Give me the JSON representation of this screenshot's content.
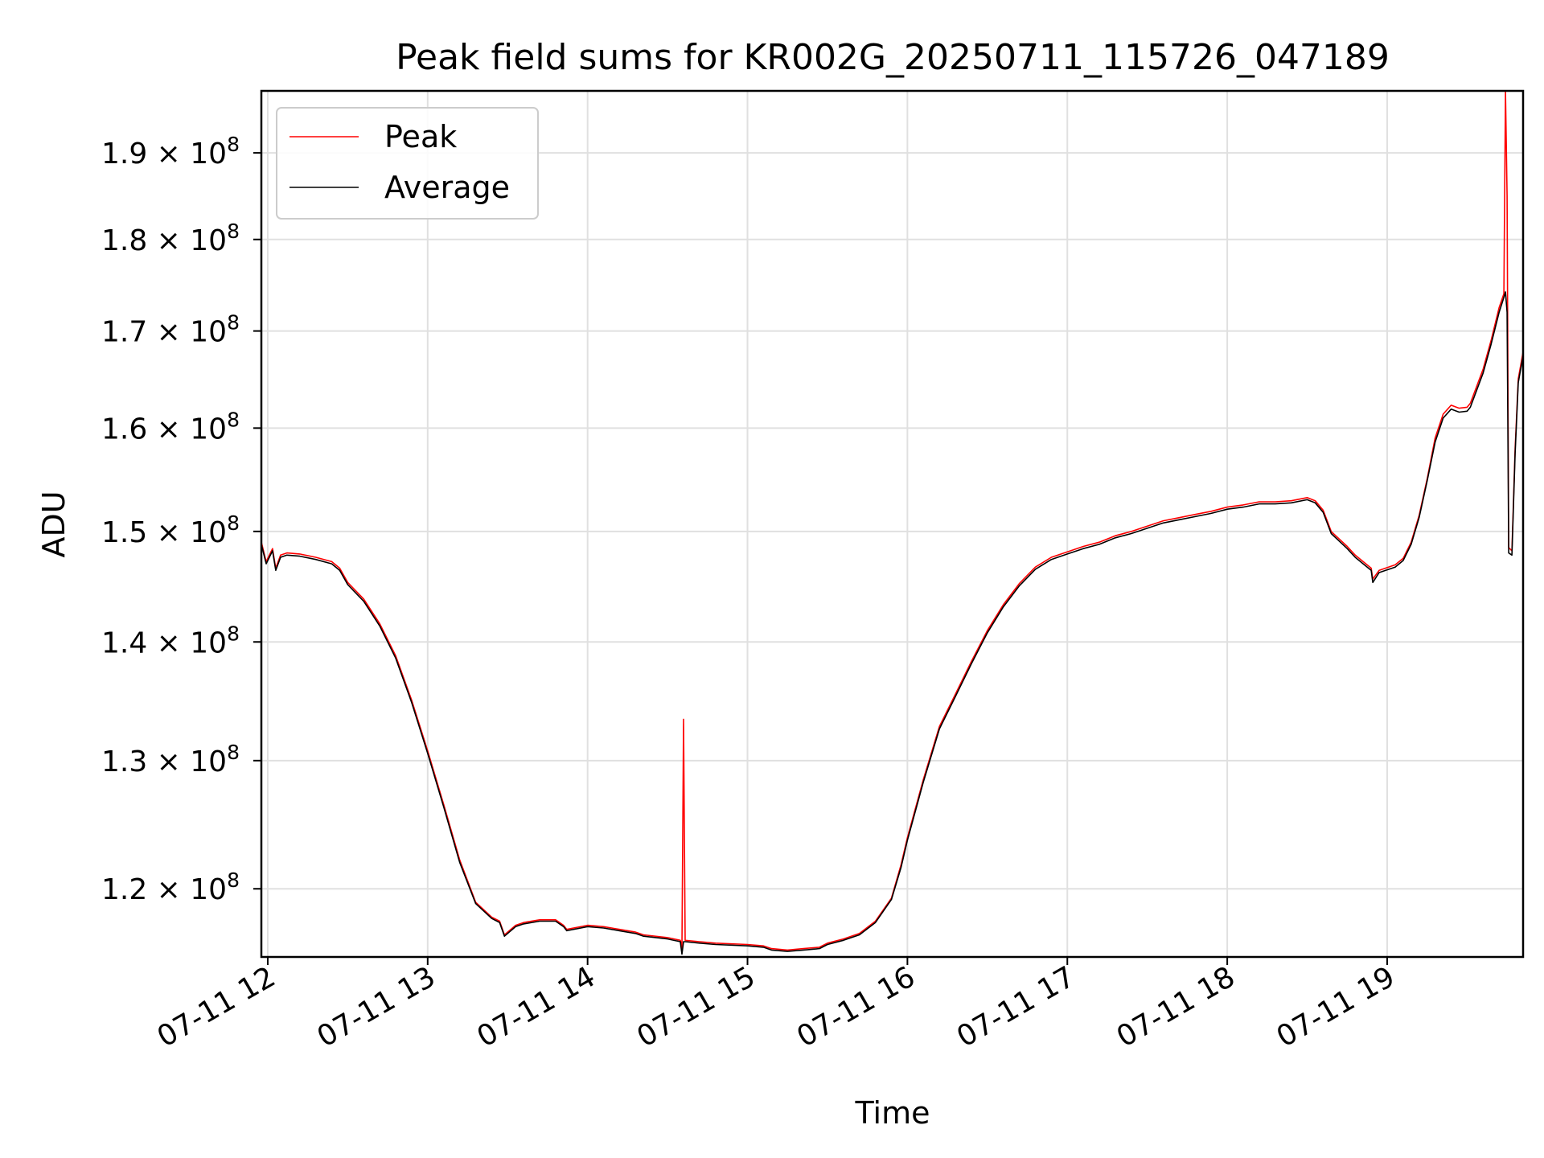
{
  "chart_data": {
    "type": "line",
    "title": "Peak field sums for KR002G_20250711_115726_047189",
    "xlabel": "Time",
    "ylabel": "ADU",
    "y_scale": "log",
    "x_range_hours": [
      11.96,
      19.85
    ],
    "ylim": [
      115000000,
      197500000
    ],
    "grid": true,
    "legend_position": "upper-left",
    "x_ticks": [
      {
        "hour": 12,
        "label": "07-11 12"
      },
      {
        "hour": 13,
        "label": "07-11 13"
      },
      {
        "hour": 14,
        "label": "07-11 14"
      },
      {
        "hour": 15,
        "label": "07-11 15"
      },
      {
        "hour": 16,
        "label": "07-11 16"
      },
      {
        "hour": 17,
        "label": "07-11 17"
      },
      {
        "hour": 18,
        "label": "07-11 18"
      },
      {
        "hour": 19,
        "label": "07-11 19"
      }
    ],
    "y_ticks": [
      {
        "value": 120000000,
        "mantissa": "1.2",
        "exponent": "8"
      },
      {
        "value": 130000000,
        "mantissa": "1.3",
        "exponent": "8"
      },
      {
        "value": 140000000,
        "mantissa": "1.4",
        "exponent": "8"
      },
      {
        "value": 150000000,
        "mantissa": "1.5",
        "exponent": "8"
      },
      {
        "value": 160000000,
        "mantissa": "1.6",
        "exponent": "8"
      },
      {
        "value": 170000000,
        "mantissa": "1.7",
        "exponent": "8"
      },
      {
        "value": 180000000,
        "mantissa": "1.8",
        "exponent": "8"
      },
      {
        "value": 190000000,
        "mantissa": "1.9",
        "exponent": "8"
      }
    ],
    "x_unit_note": "hours on 07-11",
    "series": [
      {
        "name": "Peak",
        "color": "#ff0000",
        "points": [
          [
            11.96,
            149.0
          ],
          [
            11.99,
            147.2
          ],
          [
            12.03,
            148.4
          ],
          [
            12.05,
            146.6
          ],
          [
            12.08,
            147.8
          ],
          [
            12.12,
            148.0
          ],
          [
            12.2,
            147.9
          ],
          [
            12.3,
            147.6
          ],
          [
            12.4,
            147.2
          ],
          [
            12.45,
            146.6
          ],
          [
            12.5,
            145.3
          ],
          [
            12.6,
            143.8
          ],
          [
            12.7,
            141.6
          ],
          [
            12.8,
            138.8
          ],
          [
            12.9,
            135.0
          ],
          [
            13.0,
            130.8
          ],
          [
            13.1,
            126.5
          ],
          [
            13.2,
            122.2
          ],
          [
            13.3,
            119.0
          ],
          [
            13.4,
            117.9
          ],
          [
            13.45,
            117.6
          ],
          [
            13.48,
            116.6
          ],
          [
            13.55,
            117.3
          ],
          [
            13.6,
            117.5
          ],
          [
            13.7,
            117.7
          ],
          [
            13.8,
            117.7
          ],
          [
            13.85,
            117.3
          ],
          [
            13.87,
            117.0
          ],
          [
            14.0,
            117.3
          ],
          [
            14.1,
            117.2
          ],
          [
            14.2,
            117.0
          ],
          [
            14.3,
            116.8
          ],
          [
            14.35,
            116.6
          ],
          [
            14.5,
            116.4
          ],
          [
            14.58,
            116.2
          ],
          [
            14.59,
            115.6
          ],
          [
            14.6,
            133.4
          ],
          [
            14.61,
            116.2
          ],
          [
            14.7,
            116.1
          ],
          [
            14.8,
            116.0
          ],
          [
            15.0,
            115.9
          ],
          [
            15.1,
            115.8
          ],
          [
            15.15,
            115.6
          ],
          [
            15.25,
            115.5
          ],
          [
            15.35,
            115.6
          ],
          [
            15.45,
            115.7
          ],
          [
            15.5,
            116.0
          ],
          [
            15.6,
            116.3
          ],
          [
            15.7,
            116.7
          ],
          [
            15.8,
            117.6
          ],
          [
            15.9,
            119.3
          ],
          [
            15.96,
            121.8
          ],
          [
            16.0,
            123.9
          ],
          [
            16.1,
            128.5
          ],
          [
            16.2,
            132.8
          ],
          [
            16.3,
            135.5
          ],
          [
            16.4,
            138.3
          ],
          [
            16.5,
            141.0
          ],
          [
            16.6,
            143.3
          ],
          [
            16.7,
            145.2
          ],
          [
            16.8,
            146.7
          ],
          [
            16.9,
            147.6
          ],
          [
            17.0,
            148.1
          ],
          [
            17.1,
            148.6
          ],
          [
            17.2,
            149.0
          ],
          [
            17.3,
            149.6
          ],
          [
            17.4,
            150.0
          ],
          [
            17.5,
            150.5
          ],
          [
            17.6,
            151.0
          ],
          [
            17.7,
            151.3
          ],
          [
            17.8,
            151.6
          ],
          [
            17.9,
            151.9
          ],
          [
            18.0,
            152.3
          ],
          [
            18.1,
            152.5
          ],
          [
            18.2,
            152.8
          ],
          [
            18.3,
            152.8
          ],
          [
            18.4,
            152.9
          ],
          [
            18.5,
            153.2
          ],
          [
            18.55,
            152.9
          ],
          [
            18.6,
            152.0
          ],
          [
            18.65,
            150.0
          ],
          [
            18.7,
            149.3
          ],
          [
            18.75,
            148.6
          ],
          [
            18.8,
            147.8
          ],
          [
            18.85,
            147.2
          ],
          [
            18.9,
            146.6
          ],
          [
            18.91,
            145.6
          ],
          [
            18.95,
            146.4
          ],
          [
            19.05,
            146.9
          ],
          [
            19.1,
            147.5
          ],
          [
            19.15,
            149.0
          ],
          [
            19.2,
            151.5
          ],
          [
            19.25,
            155.0
          ],
          [
            19.3,
            159.0
          ],
          [
            19.35,
            161.4
          ],
          [
            19.4,
            162.3
          ],
          [
            19.45,
            162.0
          ],
          [
            19.5,
            162.1
          ],
          [
            19.52,
            162.5
          ],
          [
            19.6,
            166.0
          ],
          [
            19.65,
            169.0
          ],
          [
            19.7,
            172.5
          ],
          [
            19.73,
            174.0
          ],
          [
            19.74,
            197.5
          ],
          [
            19.75,
            185.0
          ],
          [
            19.76,
            148.5
          ],
          [
            19.78,
            148.2
          ],
          [
            19.8,
            158.0
          ],
          [
            19.82,
            165.0
          ],
          [
            19.85,
            167.8
          ]
        ]
      },
      {
        "name": "Average",
        "color": "#000000",
        "points": [
          [
            11.96,
            148.8
          ],
          [
            11.99,
            147.0
          ],
          [
            12.03,
            148.2
          ],
          [
            12.05,
            146.4
          ],
          [
            12.08,
            147.6
          ],
          [
            12.12,
            147.8
          ],
          [
            12.2,
            147.7
          ],
          [
            12.3,
            147.4
          ],
          [
            12.4,
            147.0
          ],
          [
            12.45,
            146.4
          ],
          [
            12.5,
            145.1
          ],
          [
            12.6,
            143.6
          ],
          [
            12.7,
            141.4
          ],
          [
            12.8,
            138.6
          ],
          [
            12.9,
            134.8
          ],
          [
            13.0,
            130.6
          ],
          [
            13.1,
            126.3
          ],
          [
            13.2,
            122.0
          ],
          [
            13.3,
            118.9
          ],
          [
            13.4,
            117.8
          ],
          [
            13.45,
            117.5
          ],
          [
            13.48,
            116.5
          ],
          [
            13.55,
            117.2
          ],
          [
            13.6,
            117.4
          ],
          [
            13.7,
            117.6
          ],
          [
            13.8,
            117.6
          ],
          [
            13.85,
            117.2
          ],
          [
            13.87,
            116.9
          ],
          [
            14.0,
            117.2
          ],
          [
            14.1,
            117.1
          ],
          [
            14.2,
            116.9
          ],
          [
            14.3,
            116.7
          ],
          [
            14.35,
            116.5
          ],
          [
            14.5,
            116.3
          ],
          [
            14.58,
            116.1
          ],
          [
            14.59,
            115.2
          ],
          [
            14.6,
            116.1
          ],
          [
            14.61,
            116.1
          ],
          [
            14.7,
            116.0
          ],
          [
            14.8,
            115.9
          ],
          [
            15.0,
            115.8
          ],
          [
            15.1,
            115.7
          ],
          [
            15.15,
            115.5
          ],
          [
            15.25,
            115.4
          ],
          [
            15.35,
            115.5
          ],
          [
            15.45,
            115.6
          ],
          [
            15.5,
            115.9
          ],
          [
            15.6,
            116.2
          ],
          [
            15.7,
            116.6
          ],
          [
            15.8,
            117.5
          ],
          [
            15.9,
            119.2
          ],
          [
            15.96,
            121.6
          ],
          [
            16.0,
            123.7
          ],
          [
            16.1,
            128.3
          ],
          [
            16.2,
            132.6
          ],
          [
            16.3,
            135.3
          ],
          [
            16.4,
            138.1
          ],
          [
            16.5,
            140.8
          ],
          [
            16.6,
            143.1
          ],
          [
            16.7,
            145.0
          ],
          [
            16.8,
            146.5
          ],
          [
            16.9,
            147.4
          ],
          [
            17.0,
            147.9
          ],
          [
            17.1,
            148.4
          ],
          [
            17.2,
            148.8
          ],
          [
            17.3,
            149.4
          ],
          [
            17.4,
            149.8
          ],
          [
            17.5,
            150.3
          ],
          [
            17.6,
            150.8
          ],
          [
            17.7,
            151.1
          ],
          [
            17.8,
            151.4
          ],
          [
            17.9,
            151.7
          ],
          [
            18.0,
            152.1
          ],
          [
            18.1,
            152.3
          ],
          [
            18.2,
            152.6
          ],
          [
            18.3,
            152.6
          ],
          [
            18.4,
            152.7
          ],
          [
            18.5,
            153.0
          ],
          [
            18.55,
            152.7
          ],
          [
            18.6,
            151.8
          ],
          [
            18.65,
            149.8
          ],
          [
            18.7,
            149.1
          ],
          [
            18.75,
            148.4
          ],
          [
            18.8,
            147.6
          ],
          [
            18.85,
            147.0
          ],
          [
            18.9,
            146.4
          ],
          [
            18.91,
            145.3
          ],
          [
            18.95,
            146.2
          ],
          [
            19.05,
            146.7
          ],
          [
            19.1,
            147.3
          ],
          [
            19.15,
            148.8
          ],
          [
            19.2,
            151.3
          ],
          [
            19.25,
            154.8
          ],
          [
            19.3,
            158.6
          ],
          [
            19.35,
            161.0
          ],
          [
            19.4,
            161.9
          ],
          [
            19.45,
            161.6
          ],
          [
            19.5,
            161.7
          ],
          [
            19.52,
            162.1
          ],
          [
            19.6,
            165.6
          ],
          [
            19.65,
            168.6
          ],
          [
            19.7,
            172.0
          ],
          [
            19.73,
            173.6
          ],
          [
            19.74,
            174.2
          ],
          [
            19.75,
            172.0
          ],
          [
            19.76,
            148.0
          ],
          [
            19.78,
            147.8
          ],
          [
            19.8,
            157.5
          ],
          [
            19.82,
            164.6
          ],
          [
            19.85,
            167.4
          ]
        ]
      }
    ],
    "y_values_unit": "1e6 ADU"
  }
}
